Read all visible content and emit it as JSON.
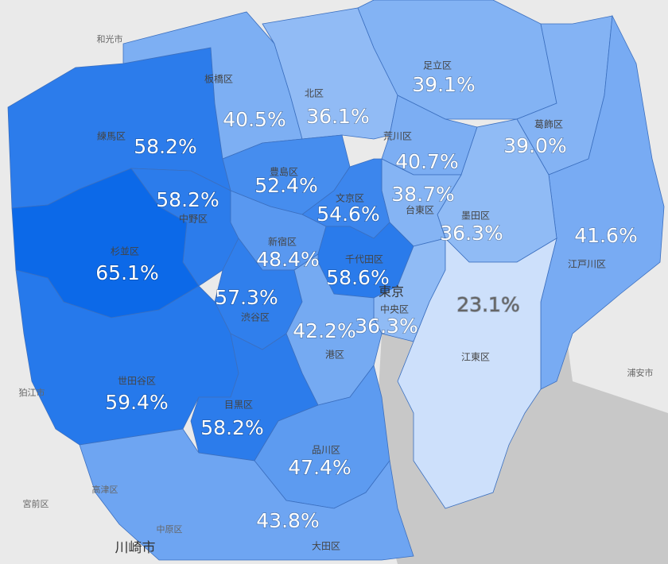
{
  "wards": [
    {
      "name": "練馬区",
      "value": 58.2,
      "value_label": "58.2%"
    },
    {
      "name": "板橋区",
      "value": 40.5,
      "value_label": "40.5%"
    },
    {
      "name": "北区",
      "value": 36.1,
      "value_label": "36.1%"
    },
    {
      "name": "足立区",
      "value": 39.1,
      "value_label": "39.1%"
    },
    {
      "name": "葛飾区",
      "value": 39.0,
      "value_label": "39.0%"
    },
    {
      "name": "荒川区",
      "value": 40.7,
      "value_label": "40.7%"
    },
    {
      "name": "江戸川区",
      "value": 41.6,
      "value_label": "41.6%"
    },
    {
      "name": "墨田区",
      "value": 36.3,
      "value_label": "36.3%"
    },
    {
      "name": "台東区",
      "value": 38.7,
      "value_label": "38.7%"
    },
    {
      "name": "豊島区",
      "value": 52.4,
      "value_label": "52.4%"
    },
    {
      "name": "文京区",
      "value": 54.6,
      "value_label": "54.6%"
    },
    {
      "name": "中野区",
      "value": 58.2,
      "value_label": "58.2%"
    },
    {
      "name": "杉並区",
      "value": 65.1,
      "value_label": "65.1%"
    },
    {
      "name": "新宿区",
      "value": 48.4,
      "value_label": "48.4%"
    },
    {
      "name": "千代田区",
      "value": 58.6,
      "value_label": "58.6%"
    },
    {
      "name": "中央区",
      "value": 36.3,
      "value_label": "36.3%"
    },
    {
      "name": "江東区",
      "value": 23.1,
      "value_label": "23.1%"
    },
    {
      "name": "渋谷区",
      "value": 57.3,
      "value_label": "57.3%"
    },
    {
      "name": "港区",
      "value": 42.2,
      "value_label": "42.2%"
    },
    {
      "name": "世田谷区",
      "value": 59.4,
      "value_label": "59.4%"
    },
    {
      "name": "目黒区",
      "value": 58.2,
      "value_label": "58.2%"
    },
    {
      "name": "品川区",
      "value": 47.4,
      "value_label": "47.4%"
    },
    {
      "name": "大田区",
      "value": 43.8,
      "value_label": "43.8%"
    }
  ],
  "place_labels": [
    "和光市",
    "狛江市",
    "高津区",
    "宮前区",
    "中原区",
    "浦安市",
    "川崎市",
    "東京"
  ]
}
